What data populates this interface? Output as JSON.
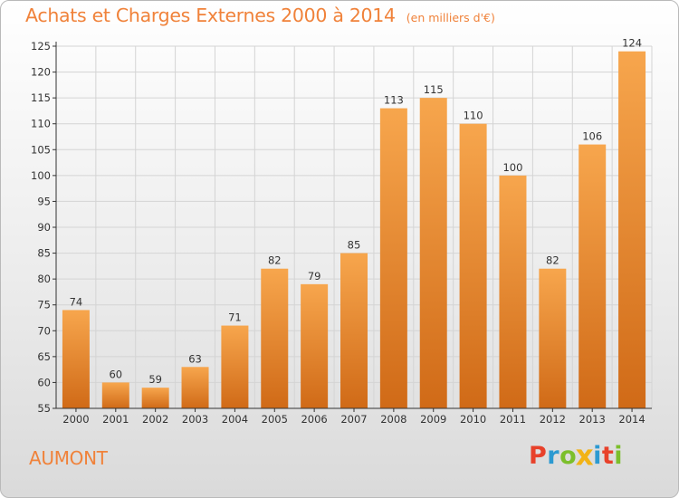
{
  "title": "Achats et Charges Externes 2000 à 2014",
  "subtitle": "(en milliers d'€)",
  "commune": "AUMONT",
  "logo_text": "Proxiti",
  "colors": {
    "title": "#f0823a",
    "bar_light": "#f7a64d",
    "bar_dark": "#d06a17",
    "axis": "#333333",
    "grid": "#d4d4d4"
  },
  "chart_data": {
    "type": "bar",
    "categories": [
      "2000",
      "2001",
      "2002",
      "2003",
      "2004",
      "2005",
      "2006",
      "2007",
      "2008",
      "2009",
      "2010",
      "2011",
      "2012",
      "2013",
      "2014"
    ],
    "values": [
      74,
      60,
      59,
      63,
      71,
      82,
      79,
      85,
      113,
      115,
      110,
      100,
      82,
      106,
      124
    ],
    "title": "Achats et Charges Externes 2000 à 2014",
    "subtitle": "(en milliers d'€)",
    "xlabel": "",
    "ylabel": "",
    "ylim": [
      55,
      125
    ],
    "yticks": [
      55,
      60,
      65,
      70,
      75,
      80,
      85,
      90,
      95,
      100,
      105,
      110,
      115,
      120,
      125
    ],
    "grid": true,
    "legend": "none"
  }
}
